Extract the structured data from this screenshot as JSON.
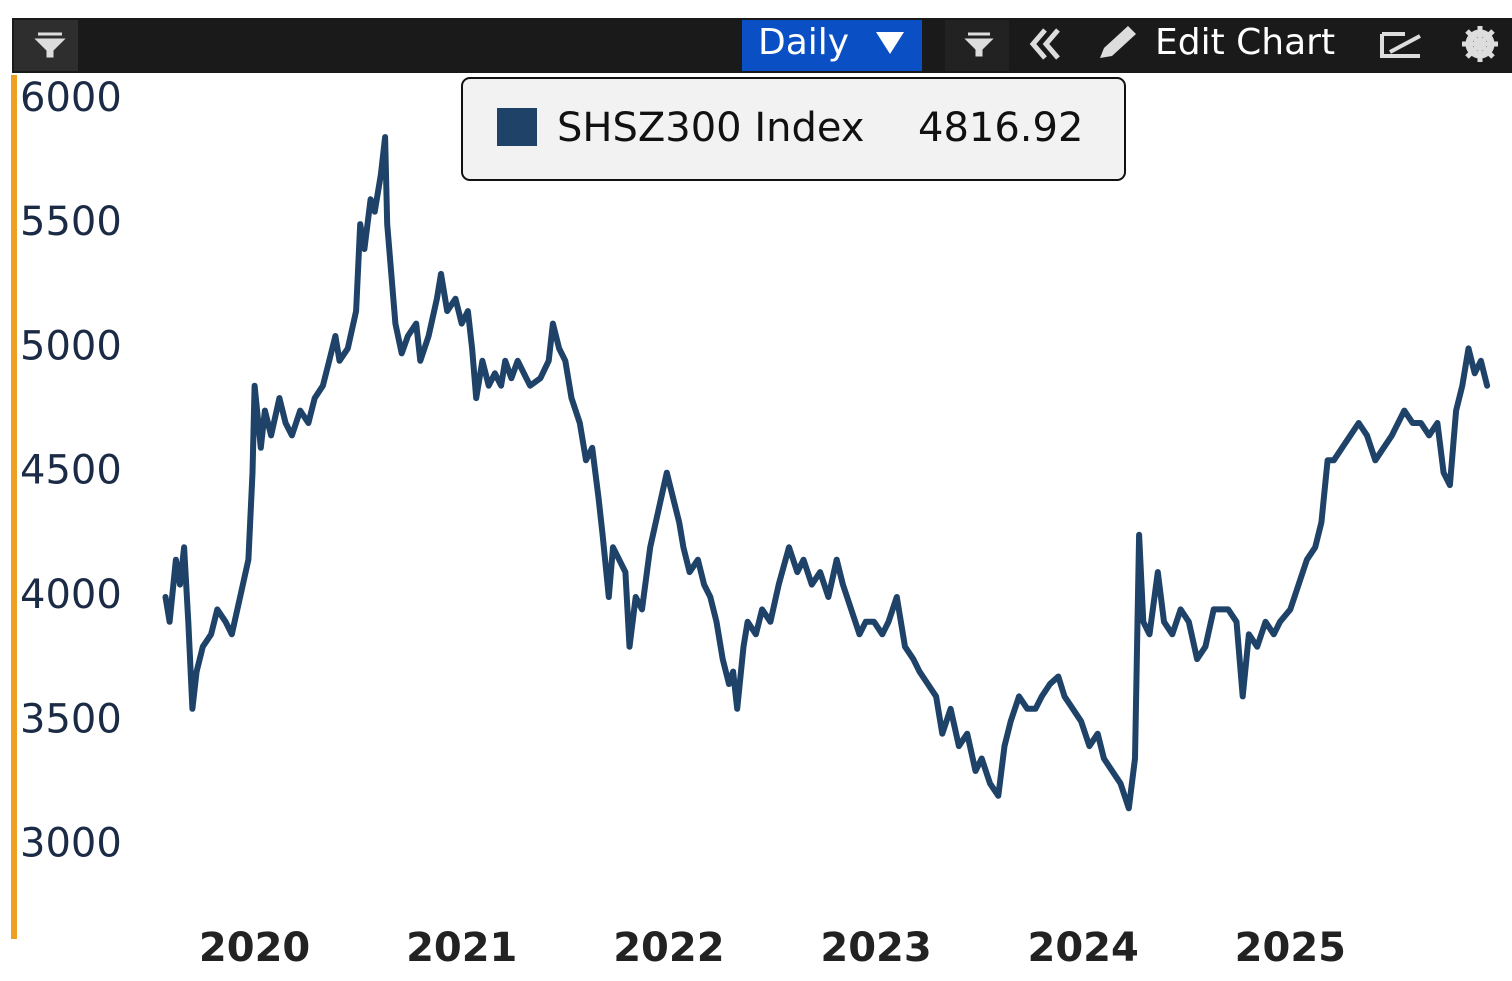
{
  "toolbar": {
    "period": "Daily",
    "edit": "Edit Chart"
  },
  "chart_data": {
    "type": "line",
    "x": [
      2020.07,
      2020.09,
      2020.12,
      2020.14,
      2020.16,
      2020.18,
      2020.2,
      2020.22,
      2020.25,
      2020.29,
      2020.32,
      2020.36,
      2020.39,
      2020.43,
      2020.47,
      2020.49,
      2020.5,
      2020.53,
      2020.55,
      2020.58,
      2020.62,
      2020.65,
      2020.68,
      2020.72,
      2020.76,
      2020.79,
      2020.83,
      2020.86,
      2020.89,
      2020.91,
      2020.95,
      2020.99,
      2021.01,
      2021.03,
      2021.06,
      2021.08,
      2021.11,
      2021.13,
      2021.14,
      2021.16,
      2021.18,
      2021.21,
      2021.24,
      2021.28,
      2021.3,
      2021.34,
      2021.38,
      2021.4,
      2021.43,
      2021.47,
      2021.5,
      2021.53,
      2021.55,
      2021.57,
      2021.6,
      2021.63,
      2021.66,
      2021.69,
      2021.71,
      2021.74,
      2021.77,
      2021.8,
      2021.83,
      2021.88,
      2021.92,
      2021.94,
      2021.97,
      2022.0,
      2022.03,
      2022.07,
      2022.1,
      2022.13,
      2022.16,
      2022.18,
      2022.21,
      2022.23,
      2022.26,
      2022.29,
      2022.31,
      2022.34,
      2022.37,
      2022.41,
      2022.45,
      2022.49,
      2022.52,
      2022.55,
      2022.57,
      2022.6,
      2022.64,
      2022.67,
      2022.7,
      2022.73,
      2022.76,
      2022.79,
      2022.81,
      2022.83,
      2022.86,
      2022.88,
      2022.92,
      2022.95,
      2022.99,
      2023.03,
      2023.08,
      2023.12,
      2023.15,
      2023.19,
      2023.23,
      2023.27,
      2023.31,
      2023.34,
      2023.38,
      2023.42,
      2023.45,
      2023.49,
      2023.53,
      2023.56,
      2023.6,
      2023.64,
      2023.68,
      2023.71,
      2023.75,
      2023.79,
      2023.82,
      2023.86,
      2023.9,
      2023.94,
      2023.98,
      2024.01,
      2024.05,
      2024.09,
      2024.12,
      2024.15,
      2024.19,
      2024.23,
      2024.27,
      2024.3,
      2024.34,
      2024.38,
      2024.41,
      2024.45,
      2024.49,
      2024.53,
      2024.57,
      2024.6,
      2024.64,
      2024.68,
      2024.72,
      2024.75,
      2024.77,
      2024.79,
      2024.82,
      2024.86,
      2024.89,
      2024.93,
      2024.97,
      2025.01,
      2025.05,
      2025.09,
      2025.13,
      2025.16,
      2025.2,
      2025.24,
      2025.27,
      2025.3,
      2025.34,
      2025.38,
      2025.42,
      2025.45,
      2025.5,
      2025.54,
      2025.58,
      2025.62,
      2025.65,
      2025.68,
      2025.71,
      2025.75,
      2025.79,
      2025.83,
      2025.87,
      2025.91,
      2025.95,
      2025.99,
      2026.02,
      2026.05,
      2026.09,
      2026.13,
      2026.17,
      2026.21,
      2026.24,
      2026.27,
      2026.3,
      2026.33,
      2026.36,
      2026.39,
      2026.42,
      2026.45
    ],
    "series": [
      {
        "name": "SHSZ300 Index",
        "color": "#1f4268",
        "values": [
          4000,
          3900,
          4150,
          4050,
          4200,
          3900,
          3550,
          3700,
          3800,
          3850,
          3950,
          3900,
          3850,
          4000,
          4150,
          4500,
          4850,
          4600,
          4750,
          4650,
          4800,
          4700,
          4650,
          4750,
          4700,
          4800,
          4850,
          4950,
          5050,
          4950,
          5000,
          5150,
          5500,
          5400,
          5600,
          5550,
          5700,
          5850,
          5500,
          5300,
          5100,
          4980,
          5050,
          5100,
          4950,
          5050,
          5200,
          5300,
          5150,
          5200,
          5100,
          5150,
          5000,
          4800,
          4950,
          4850,
          4900,
          4850,
          4950,
          4880,
          4950,
          4900,
          4850,
          4880,
          4950,
          5100,
          5000,
          4950,
          4800,
          4700,
          4550,
          4600,
          4400,
          4250,
          4000,
          4200,
          4150,
          4100,
          3800,
          4000,
          3950,
          4200,
          4350,
          4500,
          4400,
          4300,
          4200,
          4100,
          4150,
          4050,
          4000,
          3900,
          3750,
          3650,
          3700,
          3550,
          3800,
          3900,
          3850,
          3950,
          3900,
          4050,
          4200,
          4100,
          4150,
          4050,
          4100,
          4000,
          4150,
          4050,
          3950,
          3850,
          3900,
          3900,
          3850,
          3900,
          4000,
          3800,
          3750,
          3700,
          3650,
          3600,
          3450,
          3550,
          3400,
          3450,
          3300,
          3350,
          3250,
          3200,
          3400,
          3500,
          3600,
          3550,
          3550,
          3600,
          3650,
          3680,
          3600,
          3550,
          3500,
          3400,
          3450,
          3350,
          3300,
          3250,
          3150,
          3350,
          4250,
          3900,
          3850,
          4100,
          3900,
          3850,
          3950,
          3900,
          3750,
          3800,
          3950,
          3950,
          3950,
          3900,
          3600,
          3850,
          3800,
          3900,
          3850,
          3900,
          3950,
          4050,
          4150,
          4200,
          4300,
          4550,
          4550,
          4600,
          4650,
          4700,
          4650,
          4550,
          4600,
          4650,
          4700,
          4750,
          4700,
          4700,
          4650,
          4700,
          4500,
          4450,
          4750,
          4850,
          5000,
          4900,
          4950,
          4850
        ]
      }
    ],
    "last_value": 4816.92,
    "xlim": [
      2020,
      2026.57
    ],
    "xticks": [
      {
        "value": 2020.5,
        "label": "2020"
      },
      {
        "value": 2021.5,
        "label": "2021"
      },
      {
        "value": 2022.5,
        "label": "2022"
      },
      {
        "value": 2023.5,
        "label": "2023"
      },
      {
        "value": 2024.5,
        "label": "2024"
      },
      {
        "value": 2025.5,
        "label": "2025"
      }
    ],
    "ylim": [
      2620,
      6100
    ],
    "yticks": [
      3000,
      3500,
      4000,
      4500,
      5000,
      5500,
      6000
    ],
    "grid": false
  }
}
